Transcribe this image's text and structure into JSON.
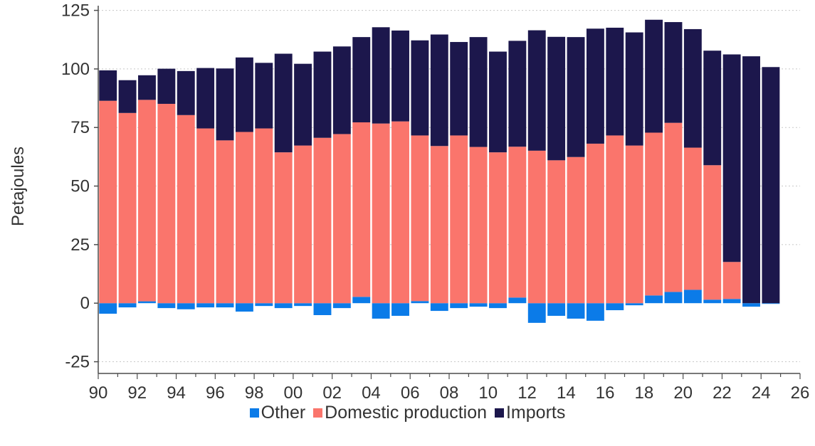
{
  "chart_data": {
    "type": "bar",
    "stacked": true,
    "title": "",
    "xlabel": "",
    "ylabel": "Petajoules",
    "ylim": [
      -30,
      127
    ],
    "yticks": [
      -25,
      0,
      25,
      50,
      75,
      100,
      125
    ],
    "xlim": [
      1990,
      2026
    ],
    "xticks": [
      1990,
      1992,
      1994,
      1996,
      1998,
      2000,
      2002,
      2004,
      2006,
      2008,
      2010,
      2012,
      2014,
      2016,
      2018,
      2020,
      2022,
      2024,
      2026
    ],
    "xtick_labels": [
      "90",
      "92",
      "94",
      "96",
      "98",
      "00",
      "02",
      "04",
      "06",
      "08",
      "10",
      "12",
      "14",
      "16",
      "18",
      "20",
      "22",
      "24",
      "26"
    ],
    "grid": "horizontal dotted",
    "legend_position": "bottom",
    "x": [
      1990,
      1991,
      1992,
      1993,
      1994,
      1995,
      1996,
      1997,
      1998,
      1999,
      2000,
      2001,
      2002,
      2003,
      2004,
      2005,
      2006,
      2007,
      2008,
      2009,
      2010,
      2011,
      2012,
      2013,
      2014,
      2015,
      2016,
      2017,
      2018,
      2019,
      2020,
      2021,
      2022,
      2023,
      2024
    ],
    "series": [
      {
        "name": "Other",
        "color": "#0b7be8",
        "values": [
          -4.5,
          -1.8,
          0.8,
          -2.1,
          -2.6,
          -1.8,
          -1.8,
          -3.6,
          -1.2,
          -2.1,
          -1.2,
          -5.1,
          -2.1,
          2.7,
          -6.6,
          -5.4,
          0.9,
          -3.3,
          -2.1,
          -1.5,
          -2.1,
          2.4,
          -8.4,
          -5.4,
          -6.6,
          -7.5,
          -3.0,
          -0.9,
          3.3,
          4.8,
          5.7,
          1.5,
          1.8,
          -1.5,
          -0.3
        ]
      },
      {
        "name": "Domestic production",
        "color": "#fa756c",
        "values": [
          86.4,
          81.2,
          86.0,
          85.1,
          80.3,
          74.6,
          69.5,
          73.1,
          74.6,
          64.4,
          67.3,
          70.6,
          72.2,
          74.5,
          76.7,
          77.6,
          70.7,
          67.1,
          71.6,
          66.7,
          64.4,
          64.4,
          65.1,
          61.0,
          62.4,
          68.1,
          71.6,
          67.3,
          69.5,
          72.2,
          60.7,
          57.4,
          15.8,
          0.0,
          0.0
        ]
      },
      {
        "name": "Imports",
        "color": "#1c174c",
        "values": [
          13.0,
          14.0,
          10.5,
          15.0,
          18.8,
          25.8,
          30.7,
          31.8,
          28.0,
          42.1,
          34.9,
          36.8,
          37.4,
          36.4,
          41.1,
          38.8,
          40.6,
          47.6,
          39.9,
          46.9,
          43.0,
          45.2,
          51.4,
          52.7,
          51.2,
          49.1,
          46.0,
          48.3,
          48.2,
          43.0,
          50.6,
          48.9,
          88.6,
          105.4,
          100.8
        ]
      }
    ]
  }
}
